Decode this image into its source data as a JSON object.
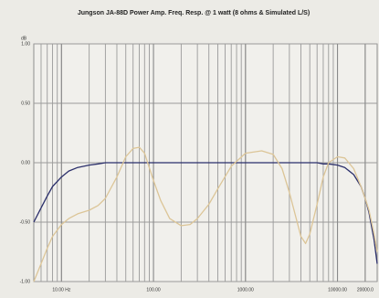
{
  "chart_data": {
    "type": "line",
    "title": "Jungson JA-88D Power Amp. Freq. Resp. @ 1 watt (8 ohms & Simulated L/S)",
    "y_label": "dB",
    "x": [
      5,
      6,
      7,
      8,
      10,
      12,
      15,
      20,
      25,
      30,
      40,
      50,
      60,
      70,
      80,
      100,
      120,
      150,
      200,
      250,
      300,
      400,
      500,
      700,
      1000,
      1500,
      2000,
      2500,
      3000,
      4000,
      4500,
      5000,
      6000,
      7000,
      8000,
      10000,
      12000,
      15000,
      18000,
      20000,
      22000,
      25000,
      27000
    ],
    "series": [
      {
        "color": "#2b2f6b",
        "values": [
          -0.5,
          -0.38,
          -0.28,
          -0.2,
          -0.12,
          -0.07,
          -0.04,
          -0.02,
          -0.01,
          0,
          0,
          0,
          0,
          0,
          0,
          0,
          0,
          0,
          0,
          0,
          0,
          0,
          0,
          0,
          0,
          0,
          0,
          0,
          0,
          0,
          0,
          0,
          0,
          -0.01,
          -0.01,
          -0.02,
          -0.04,
          -0.1,
          -0.2,
          -0.3,
          -0.42,
          -0.65,
          -0.85
        ]
      },
      {
        "color": "#dcc597",
        "values": [
          -1.0,
          -0.85,
          -0.72,
          -0.62,
          -0.52,
          -0.47,
          -0.43,
          -0.4,
          -0.36,
          -0.3,
          -0.12,
          0.05,
          0.12,
          0.13,
          0.08,
          -0.15,
          -0.32,
          -0.47,
          -0.53,
          -0.52,
          -0.47,
          -0.35,
          -0.22,
          -0.03,
          0.08,
          0.1,
          0.07,
          -0.05,
          -0.25,
          -0.62,
          -0.68,
          -0.6,
          -0.35,
          -0.12,
          0,
          0.05,
          0.04,
          -0.05,
          -0.2,
          -0.3,
          -0.4,
          -0.6,
          -0.75
        ]
      }
    ],
    "xscale": "log",
    "xlim": [
      5,
      27000
    ],
    "ylim": [
      -1,
      1
    ],
    "xticks": [
      {
        "value": 10,
        "label": "10.00 Hz"
      },
      {
        "value": 100,
        "label": "100.00"
      },
      {
        "value": 1000,
        "label": "1000.00"
      },
      {
        "value": 10000,
        "label": "10000.00"
      },
      {
        "value": 20000,
        "label": "20000.0"
      }
    ],
    "yticks": [
      {
        "value": 1,
        "label": "1.00"
      },
      {
        "value": 0.5,
        "label": "0.50"
      },
      {
        "value": 0,
        "label": "0.00"
      },
      {
        "value": -0.5,
        "label": "-0.50"
      },
      {
        "value": -1,
        "label": "-1.00"
      }
    ],
    "grid": true
  }
}
